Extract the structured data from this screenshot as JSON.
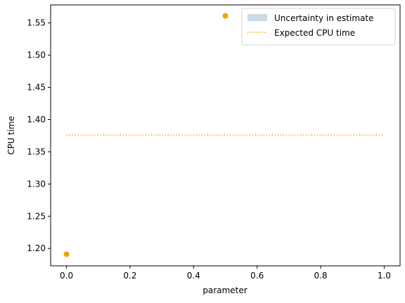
{
  "chart_data": {
    "type": "scatter",
    "title": "",
    "xlabel": "parameter",
    "ylabel": "CPU time",
    "xlim": [
      -0.05,
      1.05
    ],
    "ylim": [
      1.173,
      1.578
    ],
    "x_ticks": [
      "0.0",
      "0.2",
      "0.4",
      "0.6",
      "0.8",
      "1.0"
    ],
    "y_ticks": [
      "1.20",
      "1.25",
      "1.30",
      "1.35",
      "1.40",
      "1.45",
      "1.50",
      "1.55"
    ],
    "grid": false,
    "legend_position": "top-right",
    "points": [
      {
        "x": 0.0,
        "y": 1.191
      },
      {
        "x": 0.5,
        "y": 1.561
      }
    ],
    "expected_line": {
      "name": "Expected CPU time",
      "x": [
        0.0,
        1.0
      ],
      "y": [
        1.376,
        1.376
      ],
      "style": "dotted"
    },
    "uncertainty_band": {
      "name": "Uncertainty in estimate"
    },
    "colors": {
      "points": "#f5a300",
      "line": "#f5a300",
      "band": "#c9dbe8",
      "axes": "#000000"
    }
  }
}
